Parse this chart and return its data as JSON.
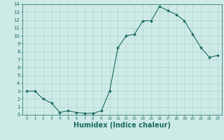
{
  "x": [
    0,
    1,
    2,
    3,
    4,
    5,
    6,
    7,
    8,
    9,
    10,
    11,
    12,
    13,
    14,
    15,
    16,
    17,
    18,
    19,
    20,
    21,
    22,
    23
  ],
  "y": [
    3.0,
    3.0,
    2.0,
    1.5,
    0.3,
    0.5,
    0.3,
    0.2,
    0.2,
    0.5,
    3.0,
    8.5,
    10.0,
    10.2,
    11.9,
    11.9,
    13.7,
    13.2,
    12.7,
    11.9,
    10.2,
    8.5,
    7.3,
    7.5
  ],
  "line_color": "#1a6b5e",
  "marker": "D",
  "marker_size": 1.8,
  "bg_color": "#ceeae7",
  "grid_color": "#aed4d0",
  "tick_color": "#1a6b5e",
  "xlabel": "Humidex (Indice chaleur)",
  "xlim": [
    -0.5,
    23.5
  ],
  "ylim": [
    0,
    14
  ],
  "xticks": [
    0,
    1,
    2,
    3,
    4,
    5,
    6,
    7,
    8,
    9,
    10,
    11,
    12,
    13,
    14,
    15,
    16,
    17,
    18,
    19,
    20,
    21,
    22,
    23
  ],
  "yticks": [
    0,
    1,
    2,
    3,
    4,
    5,
    6,
    7,
    8,
    9,
    10,
    11,
    12,
    13,
    14
  ],
  "font_color": "#1a6b5e",
  "xlabel_fontsize": 7,
  "tick_fontsize_x": 4.0,
  "tick_fontsize_y": 5.0,
  "linewidth": 0.8
}
